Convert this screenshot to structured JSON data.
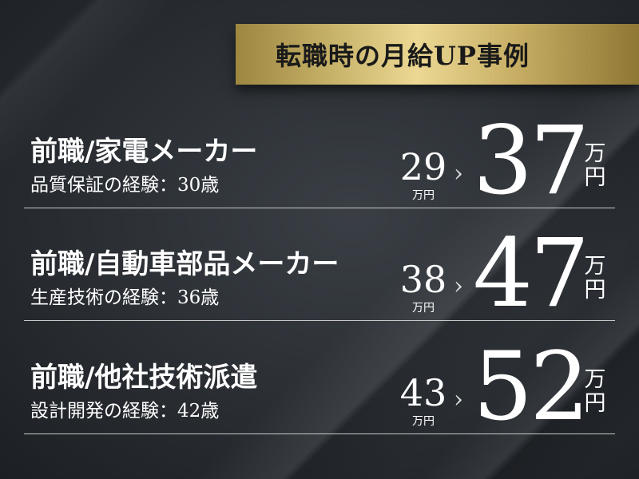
{
  "header": {
    "title": "転職時の月給UP事例"
  },
  "cases": [
    {
      "title": "前職/家電メーカー",
      "subtitle": "品質保証の経験：30歳",
      "before": "29",
      "before_unit": "万円",
      "arrow": "›",
      "after": "37",
      "after_unit_1": "万",
      "after_unit_2": "円"
    },
    {
      "title": "前職/自動車部品メーカー",
      "subtitle": "生産技術の経験：36歳",
      "before": "38",
      "before_unit": "万円",
      "arrow": "›",
      "after": "47",
      "after_unit_1": "万",
      "after_unit_2": "円"
    },
    {
      "title": "前職/他社技術派遣",
      "subtitle": "設計開発の経験：42歳",
      "before": "43",
      "before_unit": "万円",
      "arrow": "›",
      "after": "52",
      "after_unit_1": "万",
      "after_unit_2": "円"
    }
  ],
  "colors": {
    "gold": "#d9c27a",
    "background": "#2a2e33",
    "text": "#ffffff"
  }
}
